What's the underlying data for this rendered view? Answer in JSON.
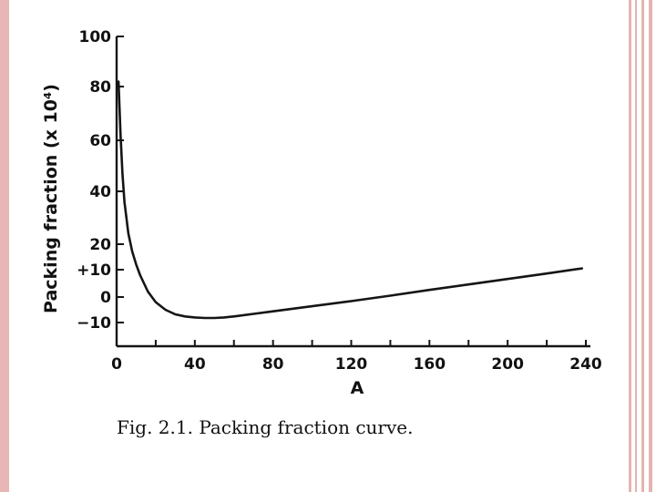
{
  "slide": {
    "accent_color": "#e8b7b5",
    "curve_color": "#151515"
  },
  "chart_data": {
    "type": "line",
    "caption": "Fig. 2.1. Packing fraction curve.",
    "xlabel": "A",
    "ylabel": "Packing fraction (x 10⁴)",
    "xlim": [
      0,
      240
    ],
    "ylim": [
      -10,
      100
    ],
    "x_ticks": [
      "0",
      "40",
      "80",
      "120",
      "160",
      "200",
      "240"
    ],
    "y_ticks": [
      "100",
      "80",
      "60",
      "40",
      "20",
      "+10",
      "0",
      "−10"
    ],
    "y_tick_values": [
      100,
      80,
      60,
      40,
      20,
      10,
      0,
      -10
    ],
    "series": [
      {
        "x": [
          1,
          2,
          3,
          4,
          6,
          8,
          10,
          12,
          16,
          20,
          25,
          30,
          35,
          40,
          45,
          50,
          55,
          60,
          70,
          80,
          100,
          120,
          140,
          160,
          180,
          200,
          220,
          238
        ],
        "values": [
          82,
          62,
          47,
          36,
          24,
          17,
          12,
          8,
          2,
          -2,
          -5,
          -6.8,
          -7.6,
          -8,
          -8.2,
          -8.2,
          -8,
          -7.6,
          -6.6,
          -5.6,
          -3.6,
          -1.6,
          0.5,
          2.6,
          4.6,
          6.6,
          8.6,
          10.5
        ]
      }
    ]
  }
}
